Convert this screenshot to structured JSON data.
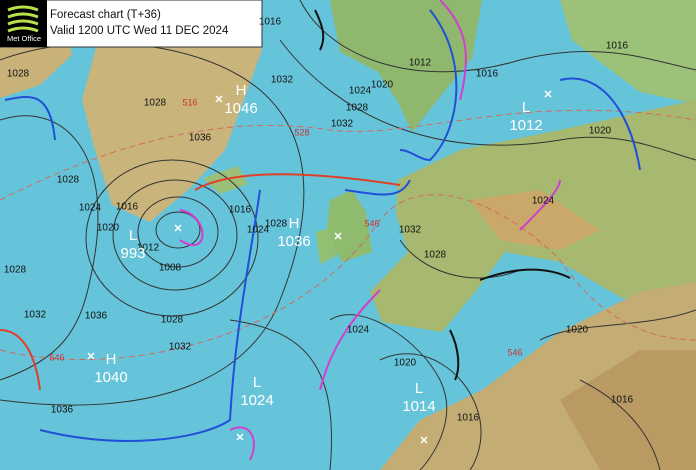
{
  "header": {
    "logo": "Met Office",
    "title": "Forecast chart (T+36)",
    "valid": "Valid 1200 UTC Wed 11 DEC 2024"
  },
  "centers": [
    {
      "letter": "H",
      "value": "1046"
    },
    {
      "letter": "L",
      "value": "1012"
    },
    {
      "letter": "L",
      "value": "993"
    },
    {
      "letter": "H",
      "value": "1036"
    },
    {
      "letter": "H",
      "value": "1040"
    },
    {
      "letter": "L",
      "value": "1024"
    },
    {
      "letter": "L",
      "value": "1014"
    }
  ],
  "isobar_labels": [
    "1016",
    "1028",
    "1028",
    "1036",
    "1032",
    "1012",
    "1016",
    "1020",
    "1024",
    "1028",
    "1032",
    "1016",
    "1020",
    "1028",
    "1024",
    "1020",
    "1016",
    "1012",
    "1008",
    "1016",
    "1024",
    "1028",
    "1032",
    "1028",
    "1024",
    "1020",
    "1016",
    "1020",
    "1016",
    "1028",
    "1032",
    "1036",
    "1036",
    "1032",
    "1028",
    "1024"
  ],
  "thickness_labels": [
    "516",
    "528",
    "546",
    "546",
    "546"
  ]
}
